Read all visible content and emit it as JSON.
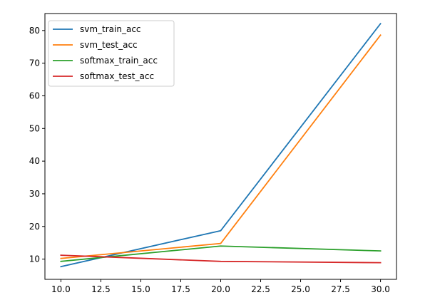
{
  "chart_data": {
    "type": "line",
    "title": "",
    "xlabel": "",
    "ylabel": "",
    "x": [
      10,
      20,
      30
    ],
    "xlim": [
      9.0,
      31.0
    ],
    "ylim": [
      3.8,
      85.2
    ],
    "xticks": [
      10.0,
      12.5,
      15.0,
      17.5,
      20.0,
      22.5,
      25.0,
      27.5,
      30.0
    ],
    "xtick_labels": [
      "10.0",
      "12.5",
      "15.0",
      "17.5",
      "20.0",
      "22.5",
      "25.0",
      "27.5",
      "30.0"
    ],
    "yticks": [
      10,
      20,
      30,
      40,
      50,
      60,
      70,
      80
    ],
    "ytick_labels": [
      "10",
      "20",
      "30",
      "40",
      "50",
      "60",
      "70",
      "80"
    ],
    "grid": false,
    "legend_position": "top-left",
    "series": [
      {
        "name": "svm_train_acc",
        "color": "#1f77b4",
        "values": [
          7.7,
          18.7,
          82.1
        ]
      },
      {
        "name": "svm_test_acc",
        "color": "#ff7f0e",
        "values": [
          10.2,
          14.8,
          78.6
        ]
      },
      {
        "name": "softmax_train_acc",
        "color": "#2ca02c",
        "values": [
          9.3,
          14.0,
          12.5
        ]
      },
      {
        "name": "softmax_test_acc",
        "color": "#d62728",
        "values": [
          11.2,
          9.3,
          8.9
        ]
      }
    ]
  }
}
